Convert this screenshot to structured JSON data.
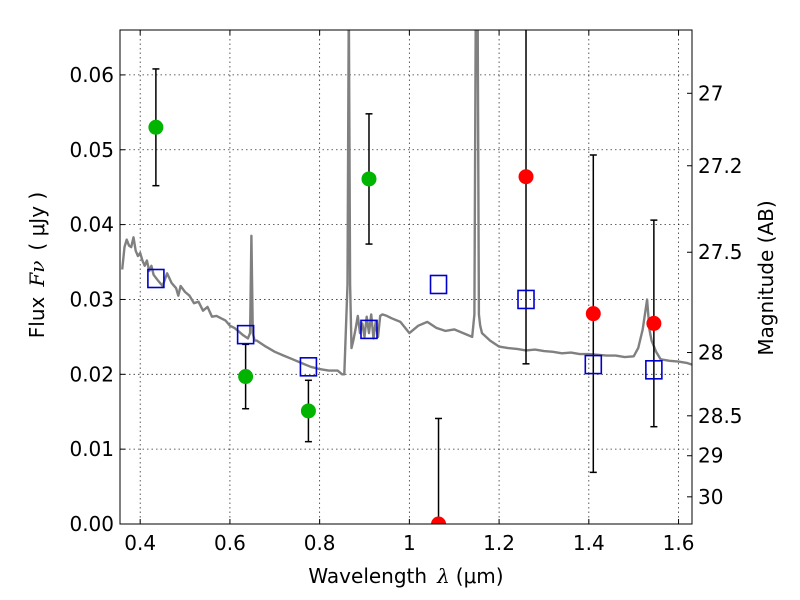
{
  "chart_data": {
    "type": "scatter",
    "xlabel_text": "Wavelength",
    "xlabel_symbol": "λ",
    "xlabel_unit": "(μm)",
    "ylabel_text": "Flux",
    "ylabel_symbol": "Fν",
    "ylabel_unit": "( μJy )",
    "y2label": "Magnitude (AB)",
    "xlim": [
      0.355,
      1.63
    ],
    "ylim": [
      0.0,
      0.066
    ],
    "grid": true,
    "x_ticks": [
      {
        "value": 0.4,
        "label": "0.4"
      },
      {
        "value": 0.6,
        "label": "0.6"
      },
      {
        "value": 0.8,
        "label": "0.8"
      },
      {
        "value": 1.0,
        "label": "1"
      },
      {
        "value": 1.2,
        "label": "1.2"
      },
      {
        "value": 1.4,
        "label": "1.4"
      },
      {
        "value": 1.6,
        "label": "1.6"
      }
    ],
    "y_ticks": [
      {
        "value": 0.0,
        "label": "0.00"
      },
      {
        "value": 0.01,
        "label": "0.01"
      },
      {
        "value": 0.02,
        "label": "0.02"
      },
      {
        "value": 0.03,
        "label": "0.03"
      },
      {
        "value": 0.04,
        "label": "0.04"
      },
      {
        "value": 0.05,
        "label": "0.05"
      },
      {
        "value": 0.06,
        "label": "0.06"
      }
    ],
    "y2_ticks": [
      {
        "mag": 27,
        "label": "27"
      },
      {
        "mag": 27.2,
        "label": "27.2"
      },
      {
        "mag": 27.5,
        "label": "27.5"
      },
      {
        "mag": 28,
        "label": "28"
      },
      {
        "mag": 28.5,
        "label": "28.5"
      },
      {
        "mag": 29,
        "label": "29"
      },
      {
        "mag": 30,
        "label": "30"
      }
    ],
    "colors": {
      "model": "#808080",
      "green": "#00b400",
      "red": "#ff0000",
      "square": "#0000cc",
      "errorbar": "#000000"
    },
    "model_sed": {
      "x": [
        0.36,
        0.365,
        0.37,
        0.375,
        0.38,
        0.385,
        0.39,
        0.395,
        0.4,
        0.405,
        0.41,
        0.415,
        0.42,
        0.425,
        0.43,
        0.44,
        0.45,
        0.46,
        0.47,
        0.48,
        0.485,
        0.49,
        0.5,
        0.51,
        0.52,
        0.53,
        0.54,
        0.55,
        0.56,
        0.57,
        0.58,
        0.59,
        0.6,
        0.61,
        0.62,
        0.63,
        0.64,
        0.645,
        0.648,
        0.651,
        0.655,
        0.66,
        0.68,
        0.7,
        0.72,
        0.74,
        0.76,
        0.78,
        0.8,
        0.82,
        0.84,
        0.85,
        0.855,
        0.862,
        0.865,
        0.868,
        0.871,
        0.875,
        0.88,
        0.885,
        0.89,
        0.895,
        0.9,
        0.905,
        0.91,
        0.915,
        0.92,
        0.925,
        0.93,
        0.935,
        0.94,
        0.95,
        0.96,
        0.98,
        1.0,
        1.02,
        1.04,
        1.06,
        1.08,
        1.1,
        1.12,
        1.14,
        1.145,
        1.148,
        1.152,
        1.155,
        1.158,
        1.162,
        1.18,
        1.2,
        1.22,
        1.24,
        1.26,
        1.28,
        1.3,
        1.32,
        1.34,
        1.36,
        1.38,
        1.4,
        1.42,
        1.44,
        1.46,
        1.48,
        1.5,
        1.51,
        1.52,
        1.53,
        1.535,
        1.54,
        1.55,
        1.56,
        1.58,
        1.6,
        1.62,
        1.63
      ],
      "y": [
        0.034,
        0.037,
        0.038,
        0.0372,
        0.037,
        0.0383,
        0.0365,
        0.0358,
        0.0362,
        0.0352,
        0.0345,
        0.0352,
        0.0338,
        0.0345,
        0.0333,
        0.0325,
        0.0318,
        0.0335,
        0.0322,
        0.0315,
        0.0305,
        0.0318,
        0.031,
        0.0305,
        0.0295,
        0.0297,
        0.0285,
        0.029,
        0.0277,
        0.0278,
        0.0275,
        0.0272,
        0.0265,
        0.0262,
        0.0257,
        0.0252,
        0.0248,
        0.0255,
        0.0385,
        0.0255,
        0.0245,
        0.0245,
        0.0237,
        0.023,
        0.0225,
        0.022,
        0.0215,
        0.021,
        0.0207,
        0.0205,
        0.0205,
        0.02,
        0.02,
        0.032,
        0.07,
        0.032,
        0.0235,
        0.0245,
        0.026,
        0.0278,
        0.0255,
        0.0268,
        0.025,
        0.0277,
        0.0255,
        0.028,
        0.0248,
        0.027,
        0.025,
        0.0278,
        0.028,
        0.0278,
        0.0275,
        0.027,
        0.0255,
        0.0265,
        0.027,
        0.0262,
        0.0258,
        0.026,
        0.0255,
        0.025,
        0.028,
        0.07,
        0.07,
        0.028,
        0.0265,
        0.0255,
        0.0245,
        0.0237,
        0.0235,
        0.0234,
        0.0232,
        0.0233,
        0.0231,
        0.023,
        0.0228,
        0.0229,
        0.0227,
        0.0227,
        0.0226,
        0.0225,
        0.0225,
        0.0223,
        0.0224,
        0.0235,
        0.026,
        0.03,
        0.026,
        0.0245,
        0.023,
        0.022,
        0.0218,
        0.0217,
        0.0215,
        0.0213
      ]
    },
    "photometry_green": [
      {
        "x": 0.435,
        "y": 0.053,
        "err": 0.0078
      },
      {
        "x": 0.635,
        "y": 0.0197,
        "err": 0.0043
      },
      {
        "x": 0.775,
        "y": 0.0151,
        "err": 0.0041
      },
      {
        "x": 0.91,
        "y": 0.0461,
        "err": 0.0087
      }
    ],
    "photometry_red": [
      {
        "x": 1.065,
        "y": 0.0,
        "err": 0.0141
      },
      {
        "x": 1.26,
        "y": 0.0464,
        "err": 0.025
      },
      {
        "x": 1.41,
        "y": 0.0281,
        "err": 0.0212
      },
      {
        "x": 1.545,
        "y": 0.0268,
        "err": 0.0138
      }
    ],
    "model_bands": [
      {
        "x": 0.435,
        "y": 0.0328
      },
      {
        "x": 0.635,
        "y": 0.0253
      },
      {
        "x": 0.775,
        "y": 0.021
      },
      {
        "x": 0.91,
        "y": 0.026
      },
      {
        "x": 1.065,
        "y": 0.032
      },
      {
        "x": 1.26,
        "y": 0.03
      },
      {
        "x": 1.41,
        "y": 0.0213
      },
      {
        "x": 1.545,
        "y": 0.0206
      }
    ]
  }
}
